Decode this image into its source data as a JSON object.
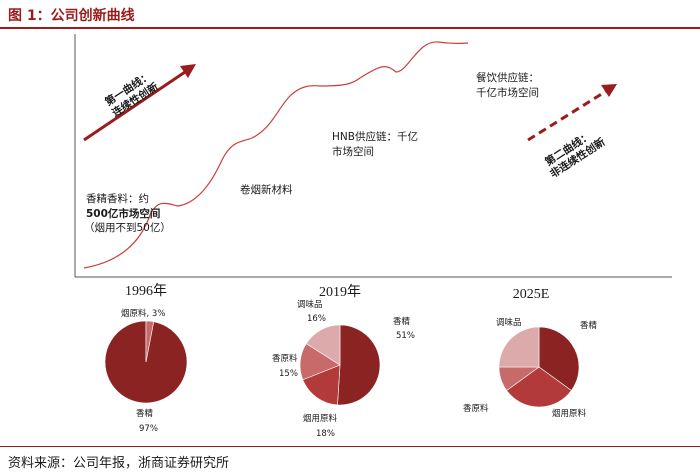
{
  "title": "图 1：公司创新曲线",
  "source": "资料来源：公司年报，浙商证券研究所",
  "colors": {
    "title_red": "#9b1c1c",
    "dark_red": "#8b2323",
    "mid_red": "#b23a3a",
    "light_red": "#c96a6a",
    "pale_red": "#dcaaaa",
    "curve": "#c94040",
    "arrow": "#9b1c1c"
  },
  "curve_labels": {
    "first_curve": [
      "第一曲线：",
      "连续性创新"
    ],
    "second_curve": [
      "第二曲线：",
      "非连续性创新"
    ],
    "stage1": [
      "香精香料：约",
      "500亿市场空间",
      "（烟用不到50亿）"
    ],
    "stage2": "卷烟新材料",
    "stage3": [
      "HNB供应链：千亿",
      "市场空间"
    ],
    "stage4": [
      "餐饮供应链：",
      "千亿市场空间"
    ]
  },
  "chart_data": [
    {
      "type": "pie",
      "title": "1996年",
      "slices": [
        {
          "label": "香精",
          "value": 97,
          "display": "97%",
          "color": "#8b2323"
        },
        {
          "label": "烟原料",
          "value": 3,
          "display": "3%",
          "color": "#c96a6a"
        }
      ]
    },
    {
      "type": "pie",
      "title": "2019年",
      "slices": [
        {
          "label": "香精",
          "value": 51,
          "display": "51%",
          "color": "#8b2323"
        },
        {
          "label": "烟用原料",
          "value": 18,
          "display": "18%",
          "color": "#b23a3a"
        },
        {
          "label": "香原料",
          "value": 15,
          "display": "15%",
          "color": "#c96a6a"
        },
        {
          "label": "调味品",
          "value": 16,
          "display": "16%",
          "color": "#dcaaaa"
        }
      ]
    },
    {
      "type": "pie",
      "title": "2025E",
      "slices": [
        {
          "label": "香精",
          "value": 35,
          "display": "",
          "color": "#8b2323"
        },
        {
          "label": "烟用原料",
          "value": 30,
          "display": "",
          "color": "#b23a3a"
        },
        {
          "label": "香原料",
          "value": 10,
          "display": "",
          "color": "#c96a6a"
        },
        {
          "label": "调味品",
          "value": 25,
          "display": "",
          "color": "#dcaaaa"
        }
      ]
    }
  ]
}
